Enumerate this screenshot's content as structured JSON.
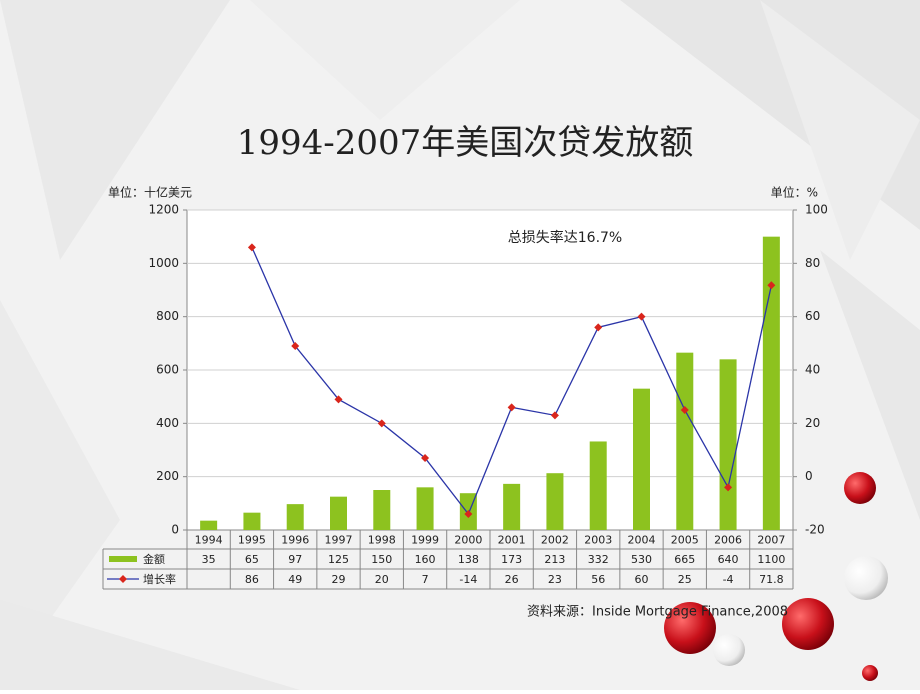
{
  "chart_data": {
    "type": "combo",
    "title": "1994-2007年美国次贷发放额",
    "y_label": "单位：十亿美元",
    "y2_label": "单位：%",
    "annotation": "总损失率达16.7%",
    "source": "资料来源：Inside Mortgage Finance,2008",
    "categories": [
      "1994",
      "1995",
      "1996",
      "1997",
      "1998",
      "1999",
      "2000",
      "2001",
      "2002",
      "2003",
      "2004",
      "2005",
      "2006",
      "2007"
    ],
    "series": [
      {
        "name": "金额",
        "type": "bar",
        "color": "#8dc21f",
        "values": [
          35,
          65,
          97,
          125,
          150,
          160,
          138,
          173,
          213,
          332,
          530,
          665,
          640,
          1100
        ]
      },
      {
        "name": "增长率",
        "type": "line",
        "axis": "y2",
        "color": "#2b35a8",
        "marker_color": "#d9261c",
        "values": [
          null,
          86,
          49,
          29,
          20,
          7,
          -14,
          26,
          23,
          56,
          60,
          25,
          -4,
          71.8
        ]
      }
    ],
    "ylim": [
      0,
      1200
    ],
    "yticks": [
      0,
      200,
      400,
      600,
      800,
      1000,
      1200
    ],
    "y2lim": [
      -20,
      100
    ],
    "y2ticks": [
      -20,
      0,
      20,
      40,
      60,
      80,
      100
    ],
    "grid": true
  }
}
